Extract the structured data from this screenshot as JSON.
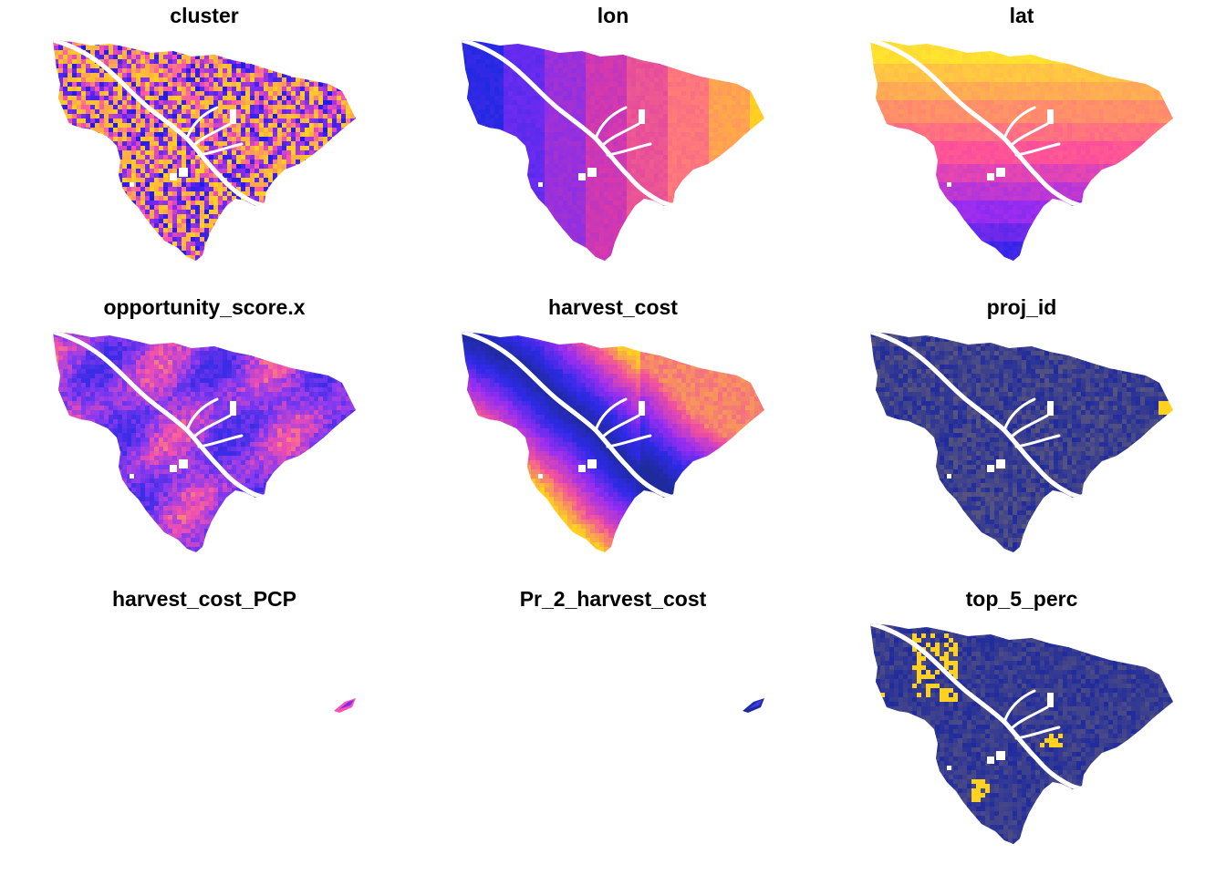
{
  "figure": {
    "background": "#ffffff",
    "panels": [
      {
        "title": "cluster",
        "fill": "random-speckle",
        "palette": [
          "#1a1ae8",
          "#7b2cf0",
          "#ff4fb0",
          "#ffd21f",
          "#ffa84a"
        ]
      },
      {
        "title": "lon",
        "fill": "gradient-west-east",
        "palette": [
          "#1428e0",
          "#7a2cf2",
          "#dc3aa8",
          "#ff7a7a",
          "#ffd21f"
        ]
      },
      {
        "title": "lat",
        "fill": "gradient-south-north",
        "palette": [
          "#1f24e6",
          "#9b2cf0",
          "#ff4f9a",
          "#ffa35a",
          "#ffeb2a"
        ]
      },
      {
        "title": "opportunity_score.x",
        "fill": "mottled",
        "palette": [
          "#3b2ce6",
          "#8a3af0",
          "#f04fb0",
          "#ffb04a"
        ]
      },
      {
        "title": "harvest_cost",
        "fill": "distance-from-river",
        "palette": [
          "#1f2a9e",
          "#2e2ae8",
          "#9a2ef0",
          "#f04fa0",
          "#ffd21f"
        ]
      },
      {
        "title": "proj_id",
        "fill": "mostly-uniform",
        "palette": [
          "#1f2a9e",
          "#ffd21f"
        ]
      },
      {
        "title": "harvest_cost_PCP",
        "fill": "small-fragment",
        "palette": [
          "#ff4fb0",
          "#7b2cf0"
        ]
      },
      {
        "title": "Pr_2_harvest_cost",
        "fill": "small-fragment",
        "palette": [
          "#1f2a9e",
          "#3a3ae8"
        ]
      },
      {
        "title": "top_5_perc",
        "fill": "uniform-with-hotspots",
        "palette": [
          "#1f2a9e",
          "#ffd21f"
        ]
      }
    ]
  }
}
